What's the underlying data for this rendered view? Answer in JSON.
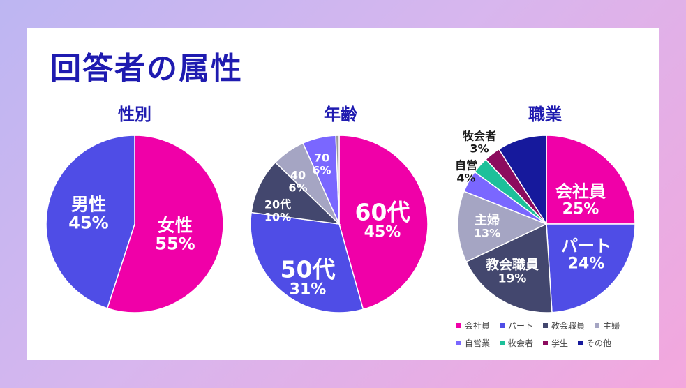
{
  "page_title": "回答者の属性",
  "chart_data": [
    {
      "type": "pie",
      "title": "性別",
      "categories": [
        "女性",
        "男性"
      ],
      "values": [
        55,
        45
      ],
      "labels": [
        "55%",
        "45%"
      ],
      "colors": [
        "#f000a8",
        "#4f4de6"
      ],
      "legend": false
    },
    {
      "type": "pie",
      "title": "年齢",
      "categories": [
        "60代",
        "50代",
        "20代",
        "40",
        "70",
        ""
      ],
      "values": [
        45,
        31,
        10,
        6,
        6,
        0.6
      ],
      "labels": [
        "45%",
        "31%",
        "10%",
        "6%",
        "6%",
        ""
      ],
      "colors": [
        "#f000a8",
        "#4f4de6",
        "#43476e",
        "#a5a5c3",
        "#7a67ff",
        "#9a9a9a"
      ],
      "legend": false
    },
    {
      "type": "pie",
      "title": "職業",
      "categories": [
        "会社員",
        "パート",
        "教会職員",
        "主婦",
        "自営",
        "牧会者",
        "学生",
        "その他"
      ],
      "values": [
        25,
        24,
        19,
        13,
        4,
        3,
        3,
        9
      ],
      "labels": [
        "25%",
        "24%",
        "19%",
        "13%",
        "4%",
        "3%",
        "",
        ""
      ],
      "colors": [
        "#f000a8",
        "#4f4de6",
        "#43476e",
        "#a5a5c3",
        "#7a67ff",
        "#1dc09a",
        "#8c0b5e",
        "#16199c"
      ],
      "legend": true,
      "legend_entries": [
        "会社員",
        "パート",
        "教会職員",
        "主婦",
        "自営業",
        "牧会者",
        "学生",
        "その他"
      ]
    }
  ]
}
